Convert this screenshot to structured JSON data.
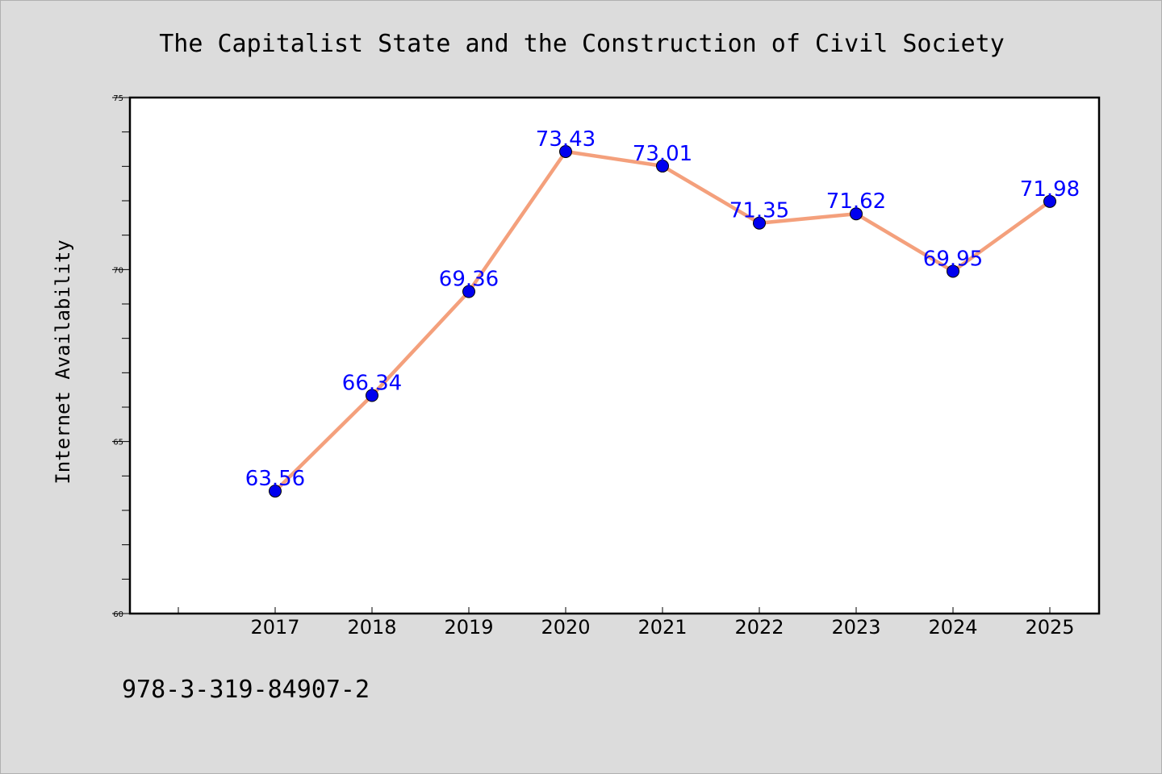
{
  "chart_data": {
    "type": "line",
    "title": "The Capitalist State and the Construction of Civil Society",
    "xlabel": "",
    "ylabel": "Internet Availability",
    "categories": [
      "2017",
      "2018",
      "2019",
      "2020",
      "2021",
      "2022",
      "2023",
      "2024",
      "2025"
    ],
    "series": [
      {
        "values": [
          63.56,
          66.34,
          69.36,
          73.43,
          73.01,
          71.35,
          71.62,
          69.95,
          71.98
        ],
        "data_labels": [
          "63.56",
          "66.34",
          "69.36",
          "73.43",
          "73.01",
          "71.35",
          "71.62",
          "69.95",
          "71.98"
        ],
        "line_color": "#f4a07c",
        "marker_color": "#0000ee"
      }
    ],
    "ylim": [
      60,
      75
    ],
    "y_ticks": [
      "60",
      "65",
      "70",
      "75"
    ],
    "grid": false,
    "legend": "none",
    "colors": {
      "background": "#dcdcdc",
      "plot_background": "#ffffff",
      "data_label": "#0000ff"
    }
  },
  "footer": {
    "isbn": "978-3-319-84907-2"
  }
}
